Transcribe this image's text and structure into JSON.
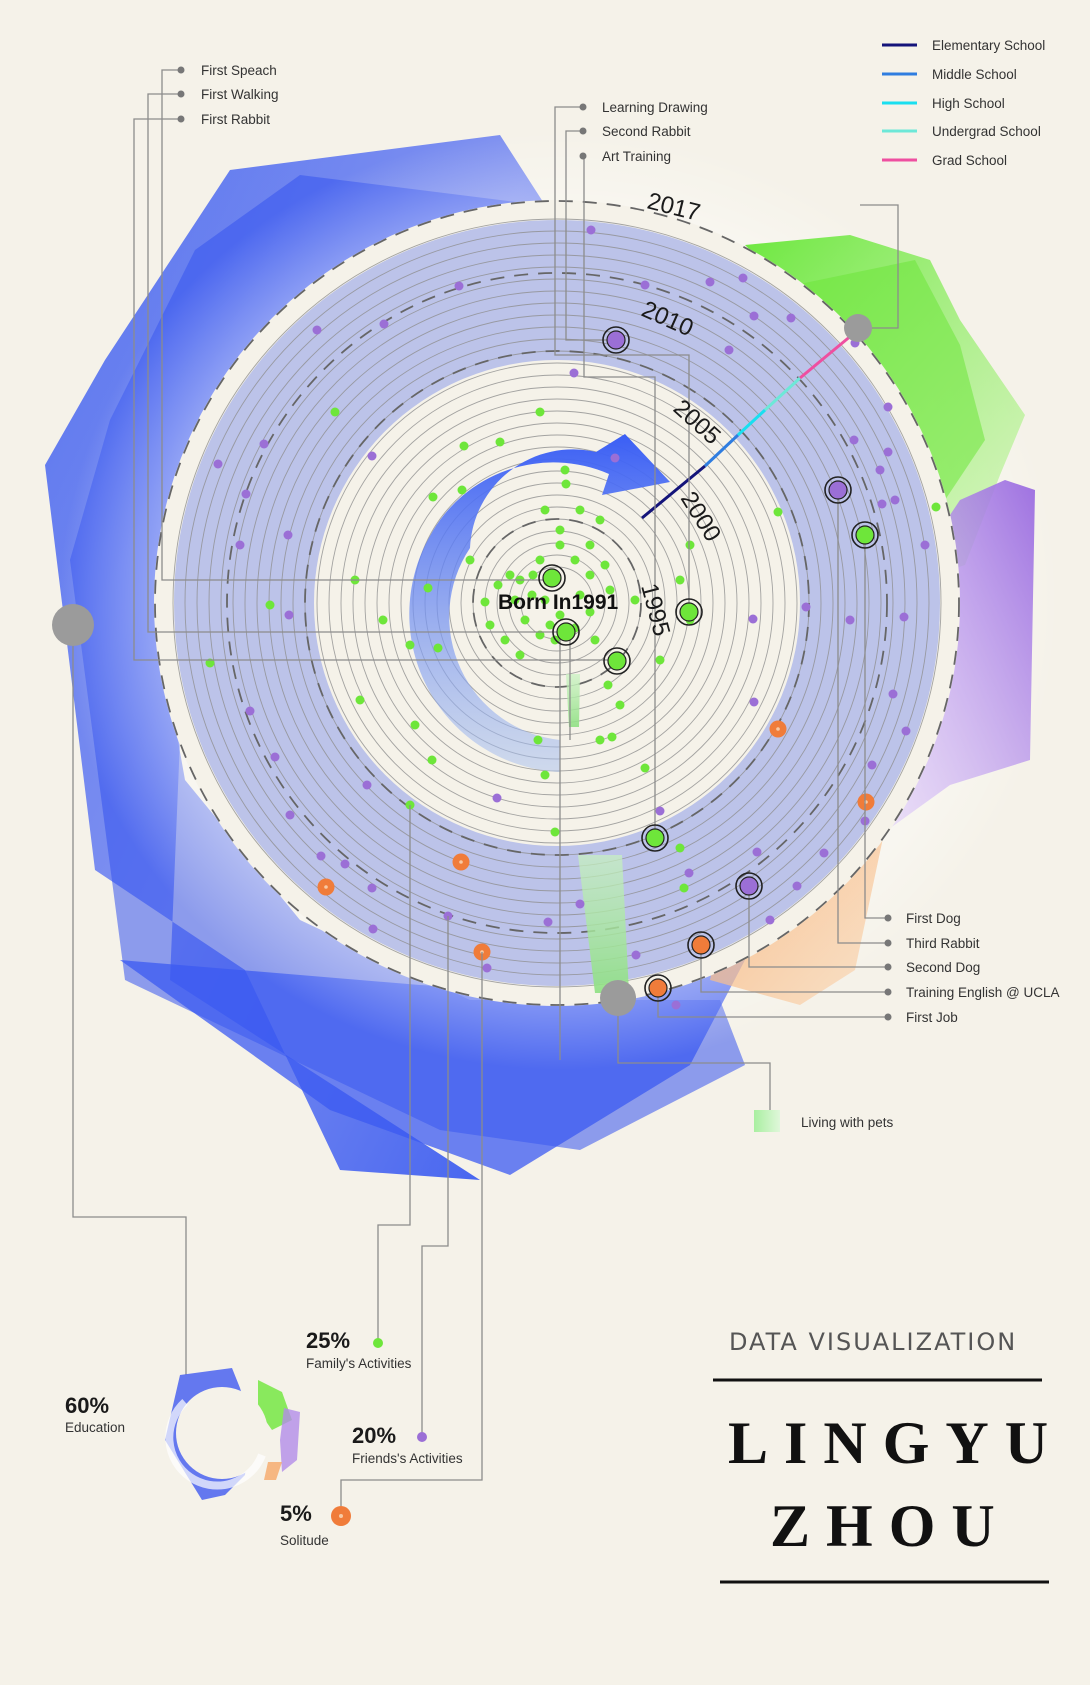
{
  "title": {
    "subtitle": "DATA VISUALIZATION",
    "name_line1": "LINGYU",
    "name_line2": "ZHOU"
  },
  "center_label": "Born In1991",
  "years": [
    "2017",
    "2010",
    "2005",
    "2000",
    "1995"
  ],
  "education_legend": [
    {
      "label": "Elementary School",
      "color": "#14147a"
    },
    {
      "label": "Middle School",
      "color": "#2f7de0"
    },
    {
      "label": "High School",
      "color": "#19dff0"
    },
    {
      "label": "Undergrad School",
      "color": "#6de8d8"
    },
    {
      "label": "Grad School",
      "color": "#ee4fa0"
    }
  ],
  "milestones_topleft": [
    "First Speach",
    "First Walking",
    "First Rabbit"
  ],
  "milestones_topmid": [
    "Learning Drawing",
    "Second Rabbit",
    "Art Training"
  ],
  "milestones_right": [
    "First Dog",
    "Third Rabbit",
    "Second Dog",
    "Training English @ UCLA",
    "First Job"
  ],
  "pets_legend": "Living with pets",
  "breakdown": [
    {
      "pct": "60%",
      "label": "Education",
      "color": "#4a63f0"
    },
    {
      "pct": "25%",
      "label": "Family's Activities",
      "color": "#6ee63a"
    },
    {
      "pct": "20%",
      "label": "Friends's Activities",
      "color": "#9b6fd6"
    },
    {
      "pct": "5%",
      "label": "Solitude",
      "color": "#f07c3a"
    }
  ],
  "colors": {
    "background": "#f5f2e9",
    "family": "#6ee63a",
    "friends": "#9b6fd6",
    "solitude": "#f07c3a",
    "education": "#4a63f0",
    "connector": "#8c8c8c"
  }
}
